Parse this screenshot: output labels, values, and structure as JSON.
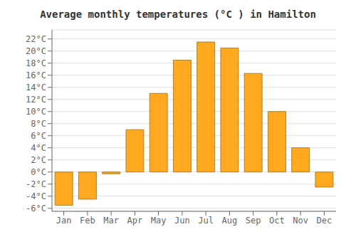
{
  "chart_data": {
    "type": "bar",
    "title": "Average monthly temperatures (°C ) in Hamilton",
    "categories": [
      "Jan",
      "Feb",
      "Mar",
      "Apr",
      "May",
      "Jun",
      "Jul",
      "Aug",
      "Sep",
      "Oct",
      "Nov",
      "Dec"
    ],
    "values": [
      -5.5,
      -4.5,
      -0.3,
      7.0,
      13.0,
      18.5,
      21.5,
      20.5,
      16.3,
      10.0,
      4.0,
      -2.5
    ],
    "color": "#FFA820",
    "ylim": [
      -6.5,
      23.5
    ],
    "yticks": [
      {
        "value": -6,
        "label": "-6°C"
      },
      {
        "value": -4,
        "label": "-4°C"
      },
      {
        "value": -2,
        "label": "-2°C"
      },
      {
        "value": 0,
        "label": "0°C"
      },
      {
        "value": 2,
        "label": "2°C"
      },
      {
        "value": 4,
        "label": "4°C"
      },
      {
        "value": 6,
        "label": "6°C"
      },
      {
        "value": 8,
        "label": "8°C"
      },
      {
        "value": 10,
        "label": "10°C"
      },
      {
        "value": 12,
        "label": "12°C"
      },
      {
        "value": 14,
        "label": "14°C"
      },
      {
        "value": 16,
        "label": "16°C"
      },
      {
        "value": 18,
        "label": "18°C"
      },
      {
        "value": 20,
        "label": "20°C"
      },
      {
        "value": 22,
        "label": "22°C"
      }
    ],
    "grid": true
  }
}
